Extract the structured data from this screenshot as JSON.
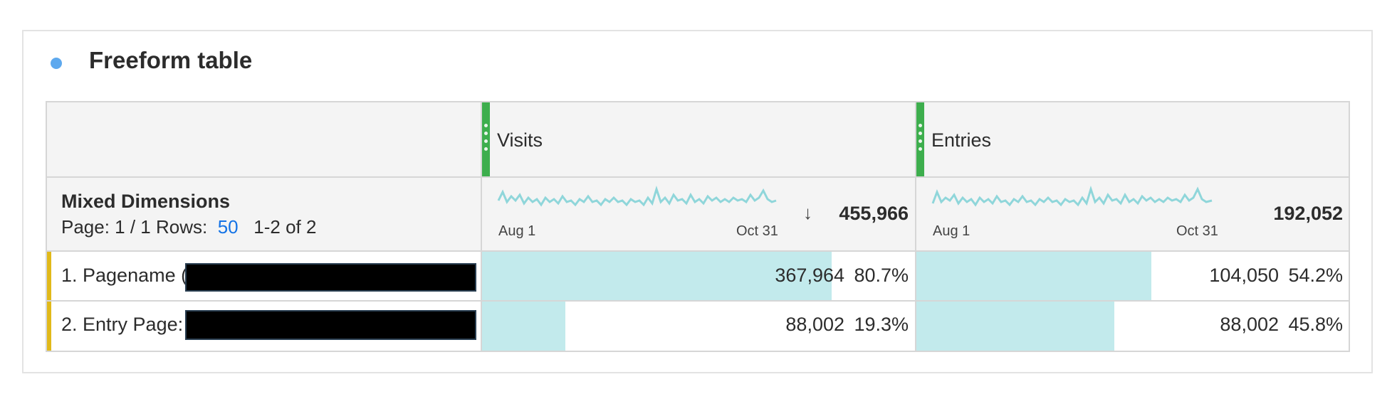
{
  "panel": {
    "title": "Freeform table",
    "dot_color": "#5ea9ee"
  },
  "table": {
    "dimension": {
      "title": "Mixed Dimensions",
      "page_label": "Page: 1 / 1",
      "rows_label": "Rows:",
      "rows_value": "50",
      "range_label": "1-2 of 2"
    },
    "columns": [
      {
        "name": "Visits",
        "total": "455,966",
        "sort_icon": "arrow-down-icon",
        "axis_start": "Aug 1",
        "axis_end": "Oct 31",
        "handle_color": "#3dae4d"
      },
      {
        "name": "Entries",
        "total": "192,052",
        "axis_start": "Aug 1",
        "axis_end": "Oct 31",
        "handle_color": "#3dae4d"
      }
    ],
    "rows": [
      {
        "label": "1.  Pagename (",
        "cells": [
          {
            "value": "367,964",
            "percent": "80.7%",
            "fraction": 0.807
          },
          {
            "value": "104,050",
            "percent": "54.2%",
            "fraction": 0.542
          }
        ]
      },
      {
        "label": "2.  Entry Page:",
        "cells": [
          {
            "value": "88,002",
            "percent": "19.3%",
            "fraction": 0.193
          },
          {
            "value": "88,002",
            "percent": "45.8%",
            "fraction": 0.458
          }
        ]
      }
    ],
    "colors": {
      "bar": "#c2eaec",
      "sparkline": "#8fd6da",
      "row_accent": "#e1b91a",
      "link": "#1473e6"
    }
  }
}
